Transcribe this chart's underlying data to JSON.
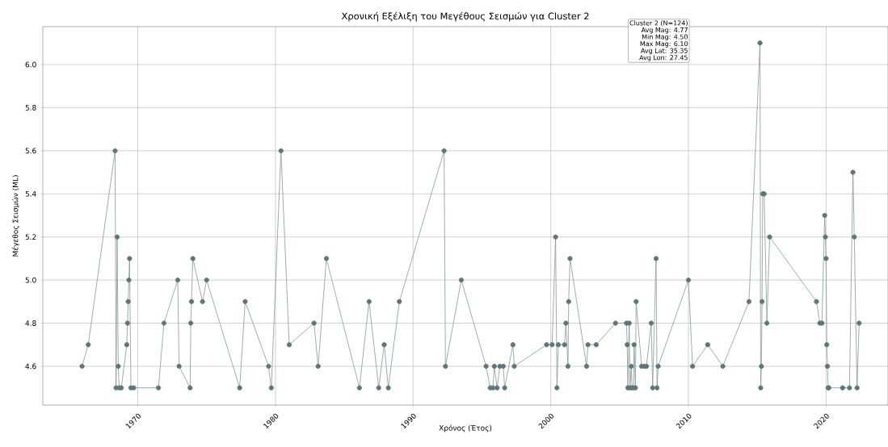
{
  "chart_data": {
    "type": "line",
    "title": "Χρονική Εξέλιξη του Μεγέθους Σεισμών για Cluster 2",
    "xlabel": "Χρόνος (Έτος)",
    "ylabel": "Μέγεθος Σεισμών (ML)",
    "annotations": [
      "Cluster 2 (N=124)",
      "Avg Mag: 4.77",
      "Min Mag: 4.50",
      "Max Mag: 6.10",
      "Avg Lat: 35.35",
      "Avg Lon: 27.45"
    ],
    "series": [
      {
        "color": "#5e7675",
        "x": [
          1965.95,
          1966.4,
          1968.35,
          1968.42,
          1968.5,
          1968.58,
          1968.65,
          1968.8,
          1969.2,
          1969.25,
          1969.3,
          1969.35,
          1969.4,
          1969.5,
          1969.7,
          1971.5,
          1971.9,
          1972.9,
          1973.0,
          1973.8,
          1973.85,
          1973.9,
          1974.0,
          1974.7,
          1975.0,
          1977.4,
          1977.8,
          1979.5,
          1979.7,
          1980.4,
          1981.0,
          1982.8,
          1983.1,
          1983.7,
          1986.1,
          1986.8,
          1987.5,
          1987.9,
          1988.2,
          1989.0,
          1992.25,
          1992.35,
          1993.5,
          1995.3,
          1995.6,
          1995.8,
          1995.9,
          1996.1,
          1996.3,
          1996.55,
          1996.65,
          1997.25,
          1997.35,
          1999.7,
          2000.1,
          2000.35,
          2000.45,
          2000.55,
          2001.0,
          2001.1,
          2001.25,
          2001.3,
          2001.4,
          2002.6,
          2002.7,
          2003.3,
          2004.7,
          2005.5,
          2005.55,
          2005.6,
          2005.7,
          2005.75,
          2005.85,
          2005.9,
          2006.0,
          2006.05,
          2006.15,
          2006.2,
          2006.6,
          2006.8,
          2006.95,
          2007.3,
          2007.4,
          2007.65,
          2007.72,
          2007.8,
          2010.0,
          2010.3,
          2011.4,
          2012.5,
          2014.4,
          2015.2,
          2015.25,
          2015.3,
          2015.35,
          2015.4,
          2015.5,
          2015.7,
          2015.9,
          2019.3,
          2019.55,
          2019.7,
          2019.9,
          2019.95,
          2020.0,
          2020.05,
          2020.1,
          2020.15,
          2020.2,
          2021.2,
          2021.7,
          2021.95,
          2022.05,
          2022.25,
          2022.4
        ],
        "values": [
          4.6,
          4.7,
          5.6,
          4.5,
          5.2,
          4.6,
          4.5,
          4.5,
          4.7,
          4.8,
          4.9,
          5.0,
          5.1,
          4.5,
          4.5,
          4.5,
          4.8,
          5.0,
          4.6,
          4.5,
          4.8,
          4.9,
          5.1,
          4.9,
          5.0,
          4.5,
          4.9,
          4.6,
          4.5,
          5.6,
          4.7,
          4.8,
          4.6,
          5.1,
          4.5,
          4.9,
          4.5,
          4.7,
          4.5,
          4.9,
          5.6,
          4.6,
          5.0,
          4.6,
          4.5,
          4.5,
          4.6,
          4.5,
          4.6,
          4.6,
          4.5,
          4.7,
          4.6,
          4.7,
          4.7,
          5.2,
          4.5,
          4.7,
          4.7,
          4.8,
          4.6,
          4.9,
          5.1,
          4.6,
          4.7,
          4.7,
          4.8,
          4.8,
          4.7,
          4.5,
          4.8,
          4.5,
          4.6,
          4.5,
          4.5,
          4.7,
          4.5,
          4.9,
          4.6,
          4.6,
          4.6,
          4.8,
          4.5,
          5.1,
          4.5,
          4.6,
          5.0,
          4.6,
          4.7,
          4.6,
          4.9,
          6.1,
          4.5,
          4.6,
          4.9,
          5.4,
          5.4,
          4.8,
          5.2,
          4.9,
          4.8,
          4.8,
          5.3,
          5.2,
          5.1,
          4.7,
          4.6,
          4.5,
          4.5,
          4.5,
          4.5,
          5.5,
          5.2,
          4.5,
          4.8
        ]
      }
    ],
    "xlim": [
      1963.1,
      2024.5
    ],
    "ylim": [
      4.42,
      6.176
    ],
    "xticks": [
      1970,
      1980,
      1990,
      2000,
      2010,
      2020
    ],
    "yticks": [
      {
        "value": 4.6,
        "label": "4.6"
      },
      {
        "value": 4.8,
        "label": "4.8"
      },
      {
        "value": 5.0,
        "label": "5.0"
      },
      {
        "value": 5.2,
        "label": "5.2"
      },
      {
        "value": 5.4,
        "label": "5.4"
      },
      {
        "value": 5.6,
        "label": "5.6"
      },
      {
        "value": 5.8,
        "label": "5.8"
      },
      {
        "value": 6.0,
        "label": "6.0"
      }
    ],
    "grid": true,
    "marker": "circle",
    "line_style": "solid"
  }
}
